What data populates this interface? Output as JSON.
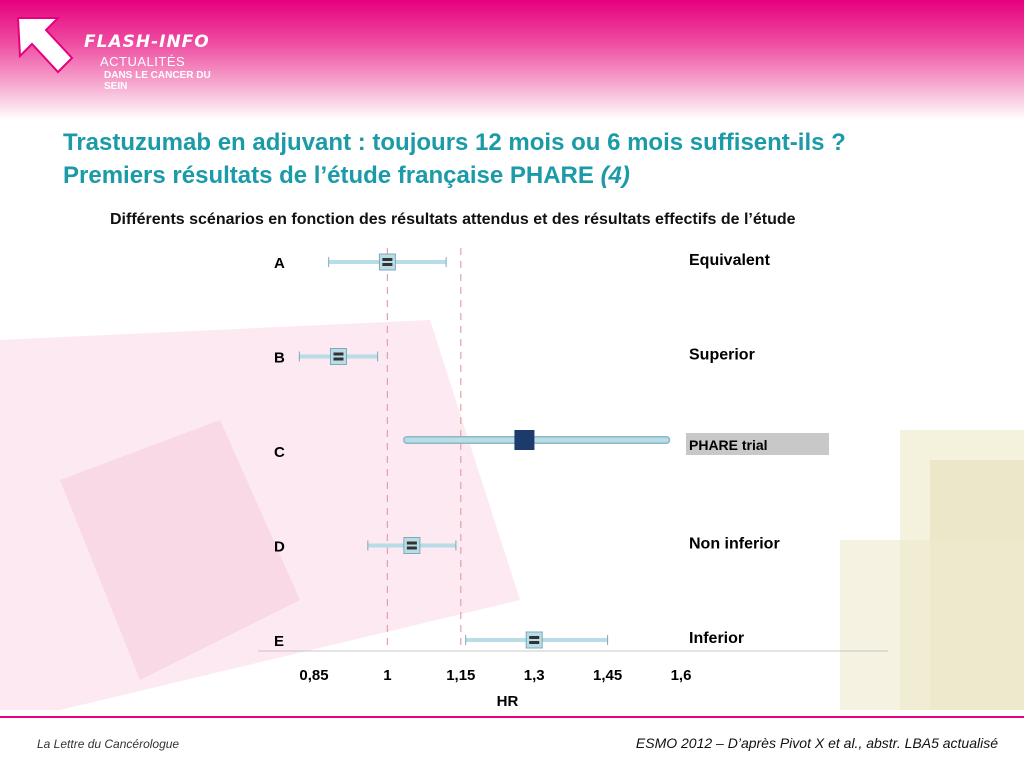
{
  "header": {
    "logo_line1": "FLASH-INFO",
    "logo_line2": "ACTUALITÉS",
    "logo_line3": "DANS LE CANCER DU SEIN"
  },
  "title": {
    "line1": "Trastuzumab en adjuvant : toujours 12 mois ou 6 mois suffisent-ils ?",
    "line2": "Premiers résultats de l’étude française PHARE",
    "line2_note": "(4)"
  },
  "footer": {
    "left": "La Lettre du Cancérologue",
    "right": "ESMO 2012 – D’après Pivot X et al., abstr. LBA5 actualisé"
  },
  "colors": {
    "accent": "#e6007e",
    "title": "#1b9aa8",
    "ci_light": "#b8dde6",
    "phare": "#1c3a6b",
    "ref_line": "#e8a0a8"
  },
  "chart_data": {
    "type": "forest",
    "title": "Différents scénarios en fonction des résultats attendus et des résultats effectifs de l’étude",
    "xlabel": "HR",
    "ylabel": "",
    "xlim": [
      0.85,
      1.6
    ],
    "xticks": [
      0.85,
      1,
      1.15,
      1.3,
      1.45,
      1.6
    ],
    "xtick_labels": [
      "0,85",
      "1",
      "1,15",
      "1,3",
      "1,45",
      "1,6"
    ],
    "reference_lines": [
      1,
      1.15
    ],
    "rows": [
      {
        "label": "A",
        "scenario": "Equivalent",
        "hr": 1.0,
        "low": 0.88,
        "high": 1.12,
        "highlight": false
      },
      {
        "label": "B",
        "scenario": "Superior",
        "hr": 0.9,
        "low": 0.82,
        "high": 0.98,
        "highlight": false
      },
      {
        "label": "C",
        "scenario": "PHARE trial",
        "hr": 1.28,
        "low": 1.04,
        "high": 1.57,
        "highlight": true
      },
      {
        "label": "D",
        "scenario": "Non inferior",
        "hr": 1.05,
        "low": 0.96,
        "high": 1.14,
        "highlight": false
      },
      {
        "label": "E",
        "scenario": "Inferior",
        "hr": 1.3,
        "low": 1.16,
        "high": 1.45,
        "highlight": false
      }
    ]
  }
}
